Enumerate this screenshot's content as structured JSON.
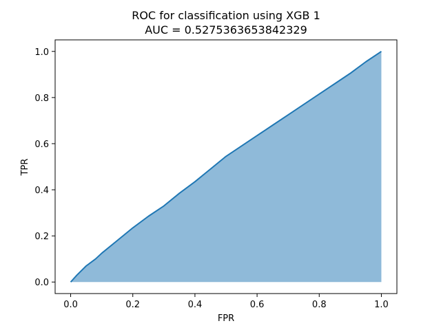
{
  "chart_data": {
    "type": "area",
    "title": "ROC for classification using XGB 1",
    "subtitle": "AUC = 0.5275363653842329",
    "xlabel": "FPR",
    "ylabel": "TPR",
    "xlim": [
      -0.05,
      1.05
    ],
    "ylim": [
      -0.05,
      1.05
    ],
    "xticks": [
      0.0,
      0.2,
      0.4,
      0.6,
      0.8,
      1.0
    ],
    "yticks": [
      0.0,
      0.2,
      0.4,
      0.6,
      0.8,
      1.0
    ],
    "xtick_labels": [
      "0.0",
      "0.2",
      "0.4",
      "0.6",
      "0.8",
      "1.0"
    ],
    "ytick_labels": [
      "0.0",
      "0.2",
      "0.4",
      "0.6",
      "0.8",
      "1.0"
    ],
    "grid": false,
    "line_color": "#1f77b4",
    "fill_color": "#8fbad9",
    "series": [
      {
        "x": [
          0.0,
          0.02,
          0.05,
          0.08,
          0.1,
          0.15,
          0.2,
          0.25,
          0.3,
          0.35,
          0.4,
          0.45,
          0.5,
          0.55,
          0.6,
          0.65,
          0.7,
          0.75,
          0.8,
          0.85,
          0.9,
          0.95,
          1.0
        ],
        "y": [
          0.0,
          0.03,
          0.07,
          0.1,
          0.125,
          0.18,
          0.235,
          0.285,
          0.33,
          0.385,
          0.435,
          0.49,
          0.545,
          0.59,
          0.635,
          0.68,
          0.725,
          0.77,
          0.815,
          0.86,
          0.905,
          0.955,
          1.0
        ]
      }
    ]
  }
}
